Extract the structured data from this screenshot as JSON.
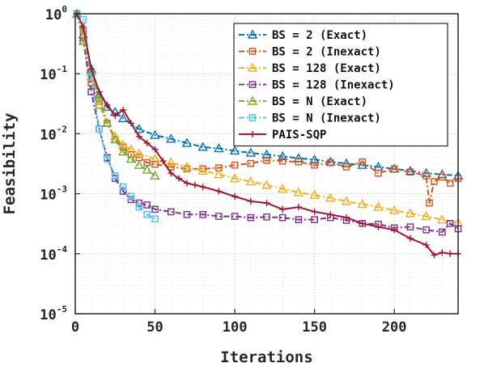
{
  "chart_data": {
    "type": "line",
    "title": "",
    "xlabel": "Iterations",
    "ylabel": "Feasibility",
    "y_scale": "log",
    "xlim": [
      0,
      240
    ],
    "ylim": [
      1e-05,
      1
    ],
    "grid": true,
    "legend_position": "top-right",
    "x_ticks": [
      "0",
      "50",
      "100",
      "150",
      "200"
    ],
    "y_ticks": [
      {
        "base": "10",
        "exp": "0"
      },
      {
        "base": "10",
        "exp": "-1"
      },
      {
        "base": "10",
        "exp": "-2"
      },
      {
        "base": "10",
        "exp": "-3"
      },
      {
        "base": "10",
        "exp": "-4"
      },
      {
        "base": "10",
        "exp": "-5"
      }
    ],
    "series": [
      {
        "name": "BS = 2 (Exact)",
        "color": "#0072BD",
        "dash": "dash-dot",
        "marker": "triangle",
        "x": [
          1,
          5,
          10,
          15,
          20,
          25,
          30,
          40,
          50,
          60,
          70,
          80,
          90,
          100,
          110,
          120,
          130,
          140,
          150,
          160,
          170,
          180,
          190,
          200,
          210,
          220,
          230,
          240
        ],
        "y": [
          1.0,
          0.45,
          0.12,
          0.045,
          0.028,
          0.023,
          0.018,
          0.012,
          0.0095,
          0.0082,
          0.007,
          0.006,
          0.0057,
          0.0052,
          0.0048,
          0.0045,
          0.0042,
          0.0039,
          0.0037,
          0.0034,
          0.0032,
          0.003,
          0.0028,
          0.0026,
          0.0024,
          0.0022,
          0.0021,
          0.002
        ]
      },
      {
        "name": "BS = 2 (Inexact)",
        "color": "#D95319",
        "dash": "dash-dot",
        "marker": "square",
        "x": [
          1,
          5,
          10,
          15,
          20,
          25,
          30,
          35,
          40,
          45,
          50,
          60,
          70,
          80,
          90,
          100,
          110,
          120,
          130,
          140,
          150,
          160,
          170,
          180,
          190,
          200,
          210,
          220,
          222,
          225,
          230,
          235,
          240
        ],
        "y": [
          1.0,
          0.5,
          0.07,
          0.03,
          0.015,
          0.008,
          0.006,
          0.0045,
          0.004,
          0.0033,
          0.0031,
          0.0028,
          0.0026,
          0.0026,
          0.0027,
          0.003,
          0.0032,
          0.0036,
          0.0035,
          0.0034,
          0.003,
          0.0033,
          0.0028,
          0.0034,
          0.0022,
          0.0026,
          0.0023,
          0.002,
          0.0007,
          0.0016,
          0.0019,
          0.0015,
          0.0018
        ]
      },
      {
        "name": "BS = 128 (Exact)",
        "color": "#EDB120",
        "dash": "dash-dot",
        "marker": "triangle",
        "x": [
          1,
          5,
          10,
          15,
          20,
          25,
          30,
          35,
          40,
          50,
          60,
          70,
          80,
          90,
          100,
          110,
          120,
          130,
          140,
          150,
          160,
          170,
          180,
          190,
          200,
          210,
          220,
          230,
          240
        ],
        "y": [
          1.0,
          0.4,
          0.09,
          0.03,
          0.015,
          0.009,
          0.0065,
          0.0055,
          0.0047,
          0.0038,
          0.0033,
          0.0028,
          0.0024,
          0.0021,
          0.0018,
          0.0016,
          0.0014,
          0.0012,
          0.00105,
          0.00095,
          0.00085,
          0.00075,
          0.00067,
          0.0006,
          0.00053,
          0.00047,
          0.00042,
          0.00037,
          0.00033
        ]
      },
      {
        "name": "BS = 128 (Inexact)",
        "color": "#7E2F8E",
        "dash": "dash-dot",
        "marker": "square",
        "x": [
          1,
          5,
          10,
          15,
          20,
          25,
          30,
          35,
          40,
          45,
          50,
          60,
          70,
          80,
          90,
          100,
          110,
          120,
          130,
          140,
          150,
          160,
          170,
          180,
          190,
          200,
          210,
          220,
          230,
          235,
          240
        ],
        "y": [
          1.0,
          0.35,
          0.05,
          0.012,
          0.004,
          0.0018,
          0.0011,
          0.0008,
          0.0007,
          0.00065,
          0.00055,
          0.0005,
          0.00045,
          0.00045,
          0.00042,
          0.00042,
          0.0004,
          0.00041,
          0.0004,
          0.00037,
          0.00037,
          0.0004,
          0.00036,
          0.00032,
          0.00031,
          0.00027,
          0.00028,
          0.00025,
          0.00023,
          0.00032,
          0.00026
        ]
      },
      {
        "name": "BS = N (Exact)",
        "color": "#77AC30",
        "dash": "dash-dot",
        "marker": "triangle",
        "x": [
          1,
          5,
          10,
          15,
          20,
          25,
          30,
          35,
          40,
          45,
          50
        ],
        "y": [
          1.0,
          0.35,
          0.11,
          0.04,
          0.015,
          0.008,
          0.005,
          0.0038,
          0.003,
          0.0025,
          0.002
        ]
      },
      {
        "name": "BS = N (Inexact)",
        "color": "#4DBEEE",
        "dash": "dash-dot",
        "marker": "square",
        "x": [
          1,
          5,
          10,
          15,
          20,
          25,
          30,
          35,
          40,
          45,
          50
        ],
        "y": [
          1.0,
          0.8,
          0.09,
          0.012,
          0.0038,
          0.002,
          0.0013,
          0.0009,
          0.0006,
          0.00045,
          0.00038
        ]
      },
      {
        "name": "PAIS-SQP",
        "color": "#A2142F",
        "dash": "solid",
        "marker": "plus",
        "x": [
          1,
          5,
          10,
          15,
          20,
          25,
          30,
          35,
          40,
          45,
          50,
          55,
          60,
          65,
          70,
          75,
          80,
          90,
          100,
          110,
          120,
          130,
          140,
          150,
          160,
          170,
          180,
          190,
          200,
          210,
          220,
          225,
          230,
          235,
          240
        ],
        "y": [
          1.0,
          0.6,
          0.12,
          0.05,
          0.03,
          0.02,
          0.025,
          0.015,
          0.009,
          0.007,
          0.0055,
          0.0035,
          0.0022,
          0.0018,
          0.0015,
          0.0014,
          0.0013,
          0.0011,
          0.0009,
          0.00075,
          0.0007,
          0.00055,
          0.0006,
          0.0005,
          0.00045,
          0.0004,
          0.00032,
          0.00028,
          0.00025,
          0.00018,
          0.00014,
          9.5e-05,
          0.000105,
          0.0001,
          0.0001
        ]
      }
    ]
  }
}
